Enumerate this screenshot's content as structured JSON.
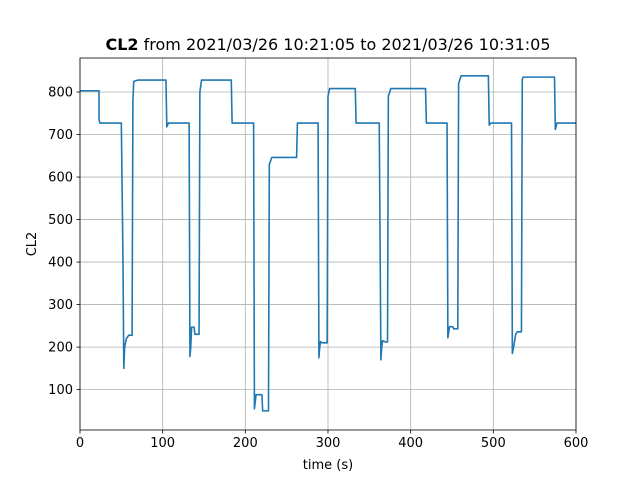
{
  "chart_data": {
    "type": "line",
    "title": {
      "bold": "CL2",
      "rest": " from 2021/03/26 10:21:05 to 2021/03/26 10:31:05"
    },
    "xlabel": "time (s)",
    "ylabel": "CL2",
    "xlim": [
      0,
      600
    ],
    "ylim": [
      5,
      880
    ],
    "xticks": [
      0,
      100,
      200,
      300,
      400,
      500,
      600
    ],
    "yticks": [
      100,
      200,
      300,
      400,
      500,
      600,
      700,
      800
    ],
    "grid": true,
    "series": [
      {
        "color": "#1f77b4",
        "points": [
          [
            0,
            803
          ],
          [
            23,
            803
          ],
          [
            23,
            736
          ],
          [
            24,
            727
          ],
          [
            50,
            727
          ],
          [
            52,
            400
          ],
          [
            53,
            150
          ],
          [
            54,
            200
          ],
          [
            56,
            220
          ],
          [
            57,
            222
          ],
          [
            59,
            228
          ],
          [
            63,
            228
          ],
          [
            64,
            780
          ],
          [
            65,
            825
          ],
          [
            70,
            828
          ],
          [
            104,
            828
          ],
          [
            105,
            718
          ],
          [
            107,
            727
          ],
          [
            132,
            727
          ],
          [
            133,
            178
          ],
          [
            134,
            200
          ],
          [
            135,
            247
          ],
          [
            138,
            247
          ],
          [
            139,
            230
          ],
          [
            144,
            230
          ],
          [
            145,
            800
          ],
          [
            147,
            828
          ],
          [
            183,
            828
          ],
          [
            184,
            727
          ],
          [
            210,
            727
          ],
          [
            211,
            55
          ],
          [
            213,
            88
          ],
          [
            220,
            88
          ],
          [
            221,
            50
          ],
          [
            228,
            50
          ],
          [
            229,
            630
          ],
          [
            232,
            646
          ],
          [
            262,
            646
          ],
          [
            263,
            727
          ],
          [
            288,
            727
          ],
          [
            289,
            175
          ],
          [
            290,
            200
          ],
          [
            291,
            213
          ],
          [
            293,
            210
          ],
          [
            299,
            210
          ],
          [
            300,
            790
          ],
          [
            302,
            808
          ],
          [
            333,
            808
          ],
          [
            334,
            727
          ],
          [
            362,
            727
          ],
          [
            364,
            170
          ],
          [
            365,
            200
          ],
          [
            366,
            215
          ],
          [
            370,
            212
          ],
          [
            372,
            212
          ],
          [
            373,
            790
          ],
          [
            376,
            808
          ],
          [
            418,
            808
          ],
          [
            419,
            727
          ],
          [
            444,
            727
          ],
          [
            445,
            222
          ],
          [
            447,
            248
          ],
          [
            451,
            248
          ],
          [
            452,
            243
          ],
          [
            457,
            243
          ],
          [
            458,
            820
          ],
          [
            461,
            838
          ],
          [
            494,
            838
          ],
          [
            495,
            722
          ],
          [
            497,
            727
          ],
          [
            522,
            727
          ],
          [
            523,
            185
          ],
          [
            525,
            205
          ],
          [
            527,
            230
          ],
          [
            529,
            236
          ],
          [
            534,
            236
          ],
          [
            535,
            830
          ],
          [
            536,
            835
          ],
          [
            574,
            835
          ],
          [
            575,
            712
          ],
          [
            577,
            727
          ],
          [
            600,
            727
          ]
        ]
      }
    ]
  }
}
